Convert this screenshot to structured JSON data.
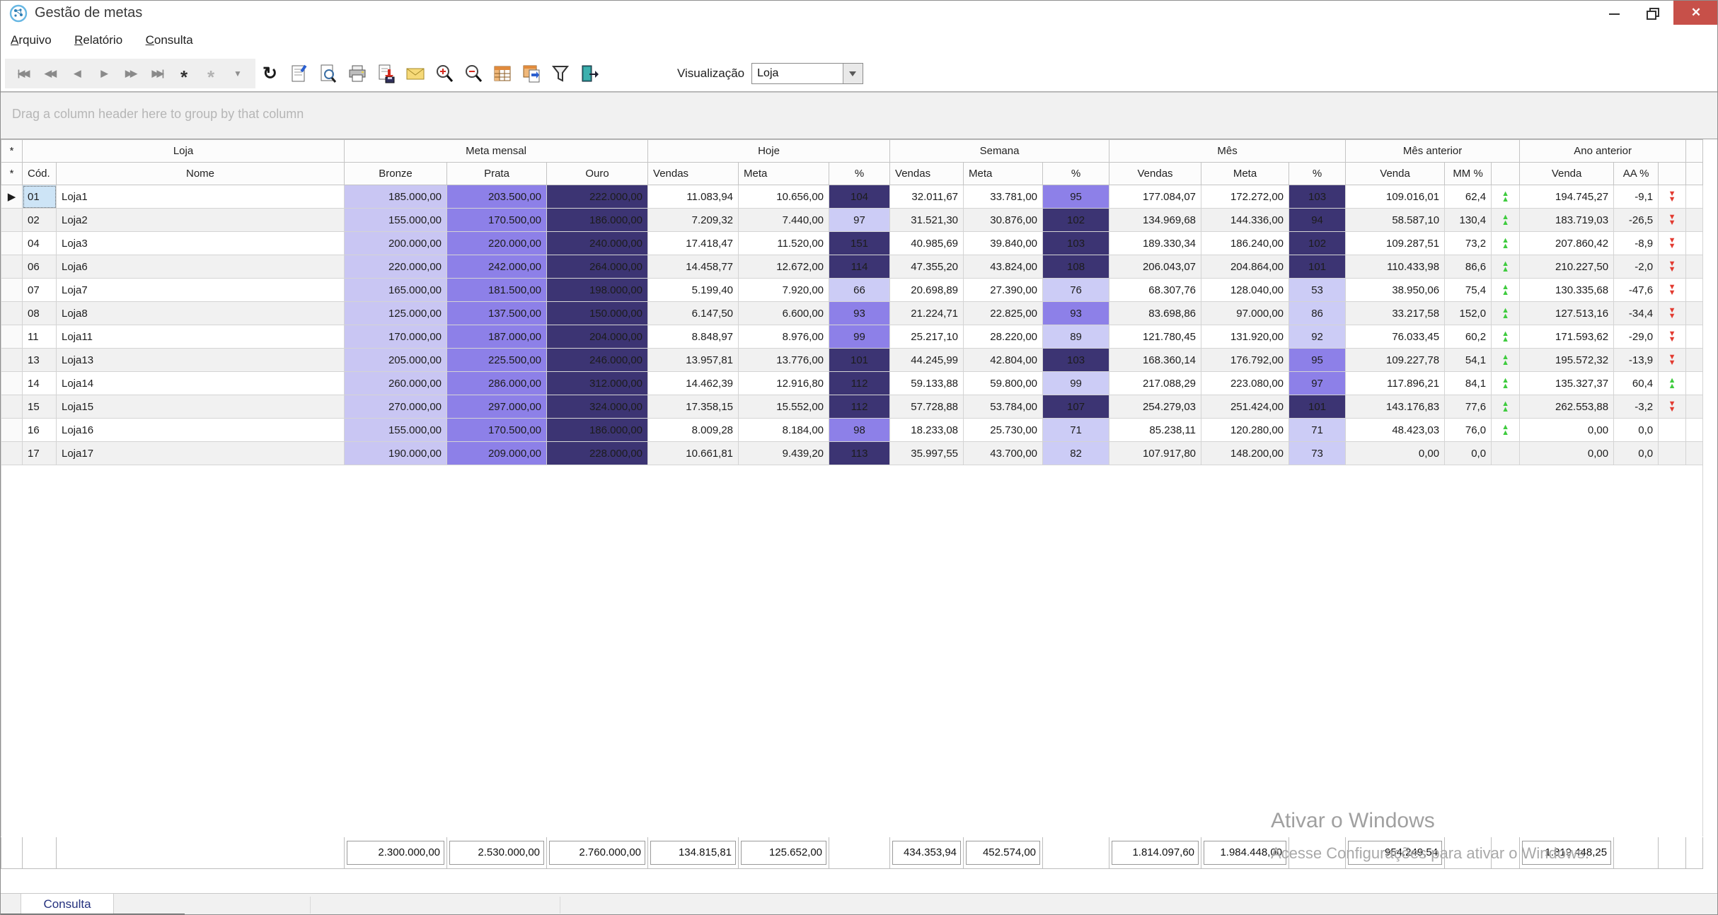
{
  "window": {
    "title": "Gestão de metas",
    "controls": {
      "minimize": "minimize",
      "restore": "restore",
      "close": "✕"
    }
  },
  "menu": {
    "items": [
      "Arquivo",
      "Relatório",
      "Consulta"
    ]
  },
  "toolbar": {
    "nav_buttons": [
      "|◀◀",
      "◀◀",
      "◀",
      "▶",
      "▶▶",
      "▶▶|",
      "*",
      "*",
      "▼"
    ],
    "refresh_glyph": "↻",
    "visualizacao_label": "Visualização",
    "visualizacao_value": "Loja",
    "icons": [
      "first-record",
      "prior-page",
      "prior-record",
      "next-record",
      "next-page",
      "last-record",
      "insert-record",
      "insert-disabled",
      "filter-small",
      "refresh",
      "properties",
      "print-preview",
      "print",
      "export-save",
      "email",
      "zoom-in",
      "zoom-out",
      "table",
      "table-export",
      "filter",
      "exit"
    ]
  },
  "group_panel": {
    "text": "Drag a column header here to group by that column"
  },
  "grid": {
    "bands": [
      "Loja",
      "Meta mensal",
      "Hoje",
      "Semana",
      "Mês",
      "Mês anterior",
      "Ano anterior"
    ],
    "columns": {
      "cod": "Cód.",
      "nome": "Nome",
      "bronze": "Bronze",
      "prata": "Prata",
      "ouro": "Ouro",
      "vendas": "Vendas",
      "meta": "Meta",
      "pct": "%",
      "venda": "Venda",
      "mm": "MM %",
      "aa": "AA %",
      "blank": ""
    },
    "rows": [
      {
        "selected": true,
        "cod": "01",
        "nome": "Loja1",
        "bronze": "185.000,00",
        "prata": "203.500,00",
        "ouro": "222.000,00",
        "hoje": {
          "vendas": "11.083,94",
          "meta": "10.656,00",
          "pct": "104",
          "lvl": "high"
        },
        "semana": {
          "vendas": "32.011,67",
          "meta": "33.781,00",
          "pct": "95",
          "lvl": "mid"
        },
        "mes": {
          "vendas": "177.084,07",
          "meta": "172.272,00",
          "pct": "103",
          "lvl": "high"
        },
        "mes_anterior": {
          "venda": "109.016,01",
          "pct": "62,4",
          "trend": "up"
        },
        "ano_anterior": {
          "venda": "194.745,27",
          "pct": "-9,1",
          "trend": "down"
        }
      },
      {
        "selected": false,
        "cod": "02",
        "nome": "Loja2",
        "bronze": "155.000,00",
        "prata": "170.500,00",
        "ouro": "186.000,00",
        "hoje": {
          "vendas": "7.209,32",
          "meta": "7.440,00",
          "pct": "97",
          "lvl": "low"
        },
        "semana": {
          "vendas": "31.521,30",
          "meta": "30.876,00",
          "pct": "102",
          "lvl": "high"
        },
        "mes": {
          "vendas": "134.969,68",
          "meta": "144.336,00",
          "pct": "94",
          "lvl": "high"
        },
        "mes_anterior": {
          "venda": "58.587,10",
          "pct": "130,4",
          "trend": "up"
        },
        "ano_anterior": {
          "venda": "183.719,03",
          "pct": "-26,5",
          "trend": "down"
        }
      },
      {
        "selected": false,
        "cod": "04",
        "nome": "Loja3",
        "bronze": "200.000,00",
        "prata": "220.000,00",
        "ouro": "240.000,00",
        "hoje": {
          "vendas": "17.418,47",
          "meta": "11.520,00",
          "pct": "151",
          "lvl": "high"
        },
        "semana": {
          "vendas": "40.985,69",
          "meta": "39.840,00",
          "pct": "103",
          "lvl": "high"
        },
        "mes": {
          "vendas": "189.330,34",
          "meta": "186.240,00",
          "pct": "102",
          "lvl": "high"
        },
        "mes_anterior": {
          "venda": "109.287,51",
          "pct": "73,2",
          "trend": "up"
        },
        "ano_anterior": {
          "venda": "207.860,42",
          "pct": "-8,9",
          "trend": "down"
        }
      },
      {
        "selected": false,
        "cod": "06",
        "nome": "Loja6",
        "bronze": "220.000,00",
        "prata": "242.000,00",
        "ouro": "264.000,00",
        "hoje": {
          "vendas": "14.458,77",
          "meta": "12.672,00",
          "pct": "114",
          "lvl": "high"
        },
        "semana": {
          "vendas": "47.355,20",
          "meta": "43.824,00",
          "pct": "108",
          "lvl": "high"
        },
        "mes": {
          "vendas": "206.043,07",
          "meta": "204.864,00",
          "pct": "101",
          "lvl": "high"
        },
        "mes_anterior": {
          "venda": "110.433,98",
          "pct": "86,6",
          "trend": "up"
        },
        "ano_anterior": {
          "venda": "210.227,50",
          "pct": "-2,0",
          "trend": "down"
        }
      },
      {
        "selected": false,
        "cod": "07",
        "nome": "Loja7",
        "bronze": "165.000,00",
        "prata": "181.500,00",
        "ouro": "198.000,00",
        "hoje": {
          "vendas": "5.199,40",
          "meta": "7.920,00",
          "pct": "66",
          "lvl": "low"
        },
        "semana": {
          "vendas": "20.698,89",
          "meta": "27.390,00",
          "pct": "76",
          "lvl": "low"
        },
        "mes": {
          "vendas": "68.307,76",
          "meta": "128.040,00",
          "pct": "53",
          "lvl": "low"
        },
        "mes_anterior": {
          "venda": "38.950,06",
          "pct": "75,4",
          "trend": "up"
        },
        "ano_anterior": {
          "venda": "130.335,68",
          "pct": "-47,6",
          "trend": "down"
        }
      },
      {
        "selected": false,
        "cod": "08",
        "nome": "Loja8",
        "bronze": "125.000,00",
        "prata": "137.500,00",
        "ouro": "150.000,00",
        "hoje": {
          "vendas": "6.147,50",
          "meta": "6.600,00",
          "pct": "93",
          "lvl": "mid"
        },
        "semana": {
          "vendas": "21.224,71",
          "meta": "22.825,00",
          "pct": "93",
          "lvl": "mid"
        },
        "mes": {
          "vendas": "83.698,86",
          "meta": "97.000,00",
          "pct": "86",
          "lvl": "low"
        },
        "mes_anterior": {
          "venda": "33.217,58",
          "pct": "152,0",
          "trend": "up"
        },
        "ano_anterior": {
          "venda": "127.513,16",
          "pct": "-34,4",
          "trend": "down"
        }
      },
      {
        "selected": false,
        "cod": "11",
        "nome": "Loja11",
        "bronze": "170.000,00",
        "prata": "187.000,00",
        "ouro": "204.000,00",
        "hoje": {
          "vendas": "8.848,97",
          "meta": "8.976,00",
          "pct": "99",
          "lvl": "mid"
        },
        "semana": {
          "vendas": "25.217,10",
          "meta": "28.220,00",
          "pct": "89",
          "lvl": "low"
        },
        "mes": {
          "vendas": "121.780,45",
          "meta": "131.920,00",
          "pct": "92",
          "lvl": "low"
        },
        "mes_anterior": {
          "venda": "76.033,45",
          "pct": "60,2",
          "trend": "up"
        },
        "ano_anterior": {
          "venda": "171.593,62",
          "pct": "-29,0",
          "trend": "down"
        }
      },
      {
        "selected": false,
        "cod": "13",
        "nome": "Loja13",
        "bronze": "205.000,00",
        "prata": "225.500,00",
        "ouro": "246.000,00",
        "hoje": {
          "vendas": "13.957,81",
          "meta": "13.776,00",
          "pct": "101",
          "lvl": "high"
        },
        "semana": {
          "vendas": "44.245,99",
          "meta": "42.804,00",
          "pct": "103",
          "lvl": "high"
        },
        "mes": {
          "vendas": "168.360,14",
          "meta": "176.792,00",
          "pct": "95",
          "lvl": "mid"
        },
        "mes_anterior": {
          "venda": "109.227,78",
          "pct": "54,1",
          "trend": "up"
        },
        "ano_anterior": {
          "venda": "195.572,32",
          "pct": "-13,9",
          "trend": "down"
        }
      },
      {
        "selected": false,
        "cod": "14",
        "nome": "Loja14",
        "bronze": "260.000,00",
        "prata": "286.000,00",
        "ouro": "312.000,00",
        "hoje": {
          "vendas": "14.462,39",
          "meta": "12.916,80",
          "pct": "112",
          "lvl": "high"
        },
        "semana": {
          "vendas": "59.133,88",
          "meta": "59.800,00",
          "pct": "99",
          "lvl": "low"
        },
        "mes": {
          "vendas": "217.088,29",
          "meta": "223.080,00",
          "pct": "97",
          "lvl": "mid"
        },
        "mes_anterior": {
          "venda": "117.896,21",
          "pct": "84,1",
          "trend": "up"
        },
        "ano_anterior": {
          "venda": "135.327,37",
          "pct": "60,4",
          "trend": "up"
        }
      },
      {
        "selected": false,
        "cod": "15",
        "nome": "Loja15",
        "bronze": "270.000,00",
        "prata": "297.000,00",
        "ouro": "324.000,00",
        "hoje": {
          "vendas": "17.358,15",
          "meta": "15.552,00",
          "pct": "112",
          "lvl": "high"
        },
        "semana": {
          "vendas": "57.728,88",
          "meta": "53.784,00",
          "pct": "107",
          "lvl": "high"
        },
        "mes": {
          "vendas": "254.279,03",
          "meta": "251.424,00",
          "pct": "101",
          "lvl": "high"
        },
        "mes_anterior": {
          "venda": "143.176,83",
          "pct": "77,6",
          "trend": "up"
        },
        "ano_anterior": {
          "venda": "262.553,88",
          "pct": "-3,2",
          "trend": "down"
        }
      },
      {
        "selected": false,
        "cod": "16",
        "nome": "Loja16",
        "bronze": "155.000,00",
        "prata": "170.500,00",
        "ouro": "186.000,00",
        "hoje": {
          "vendas": "8.009,28",
          "meta": "8.184,00",
          "pct": "98",
          "lvl": "mid"
        },
        "semana": {
          "vendas": "18.233,08",
          "meta": "25.730,00",
          "pct": "71",
          "lvl": "low"
        },
        "mes": {
          "vendas": "85.238,11",
          "meta": "120.280,00",
          "pct": "71",
          "lvl": "low"
        },
        "mes_anterior": {
          "venda": "48.423,03",
          "pct": "76,0",
          "trend": "up"
        },
        "ano_anterior": {
          "venda": "0,00",
          "pct": "0,0",
          "trend": "none"
        }
      },
      {
        "selected": false,
        "cod": "17",
        "nome": "Loja17",
        "bronze": "190.000,00",
        "prata": "209.000,00",
        "ouro": "228.000,00",
        "hoje": {
          "vendas": "10.661,81",
          "meta": "9.439,20",
          "pct": "113",
          "lvl": "high"
        },
        "semana": {
          "vendas": "35.997,55",
          "meta": "43.700,00",
          "pct": "82",
          "lvl": "low"
        },
        "mes": {
          "vendas": "107.917,80",
          "meta": "148.200,00",
          "pct": "73",
          "lvl": "low"
        },
        "mes_anterior": {
          "venda": "0,00",
          "pct": "0,0",
          "trend": "none"
        },
        "ano_anterior": {
          "venda": "0,00",
          "pct": "0,0",
          "trend": "none"
        }
      }
    ],
    "footer": {
      "bronze": "2.300.000,00",
      "prata": "2.530.000,00",
      "ouro": "2.760.000,00",
      "hoje_vendas": "134.815,81",
      "hoje_meta": "125.652,00",
      "semana_vendas": "434.353,94",
      "semana_meta": "452.574,00",
      "mes_vendas": "1.814.097,60",
      "mes_meta": "1.984.448,00",
      "mes_anterior_venda": "954.249,54",
      "ano_anterior_venda": "1.819.448,25"
    }
  },
  "watermark": {
    "line1": "Ativar o Windows",
    "line2": "Acesse Configurações para ativar o Windows."
  },
  "tabbar": {
    "tabs": [
      {
        "label": "Consulta",
        "active": true
      }
    ]
  },
  "colors": {
    "level_high": "#3c3473",
    "level_mid": "#8d80e8",
    "level_low": "#ccccf6",
    "bronze_bg": "#c9c6f3",
    "prata_bg": "#8d80e8",
    "ouro_bg": "#3c3473",
    "trend_up": "#3ecb3e",
    "trend_down": "#e23a30",
    "close_button": "#c75049",
    "selected_cell": "#cde4f6",
    "tab_text": "#24317e"
  }
}
